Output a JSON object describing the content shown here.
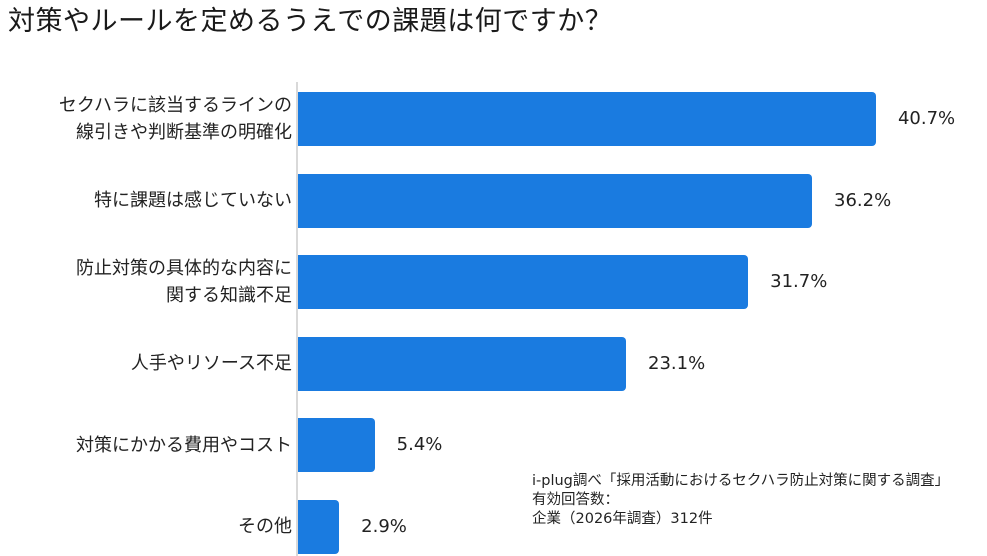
{
  "chart_data": {
    "type": "bar",
    "orientation": "horizontal",
    "title": "対策やルールを定めるうえでの課題は何ですか？",
    "categories": [
      [
        "セクハラに該当するラインの",
        "線引きや判断基準の明確化"
      ],
      [
        "特に課題は感じていない"
      ],
      [
        "防止対策の具体的な内容に",
        "関する知識不足"
      ],
      [
        "人手やリソース不足"
      ],
      [
        "対策にかかる費用やコスト"
      ],
      [
        "その他"
      ]
    ],
    "values": [
      40.7,
      36.2,
      31.7,
      23.1,
      5.4,
      2.9
    ],
    "value_labels": [
      "40.7%",
      "36.2%",
      "31.7%",
      "23.1%",
      "5.4%",
      "2.9%"
    ],
    "unit": "%",
    "xlim": [
      0,
      45
    ],
    "grid": false,
    "bar_color": "#1a7be0"
  },
  "source": {
    "line1": "i-plug調べ「採用活動におけるセクハラ防止対策に関する調査」",
    "line2": "有効回答数：",
    "line3": "企業（2026年調査）312件"
  }
}
